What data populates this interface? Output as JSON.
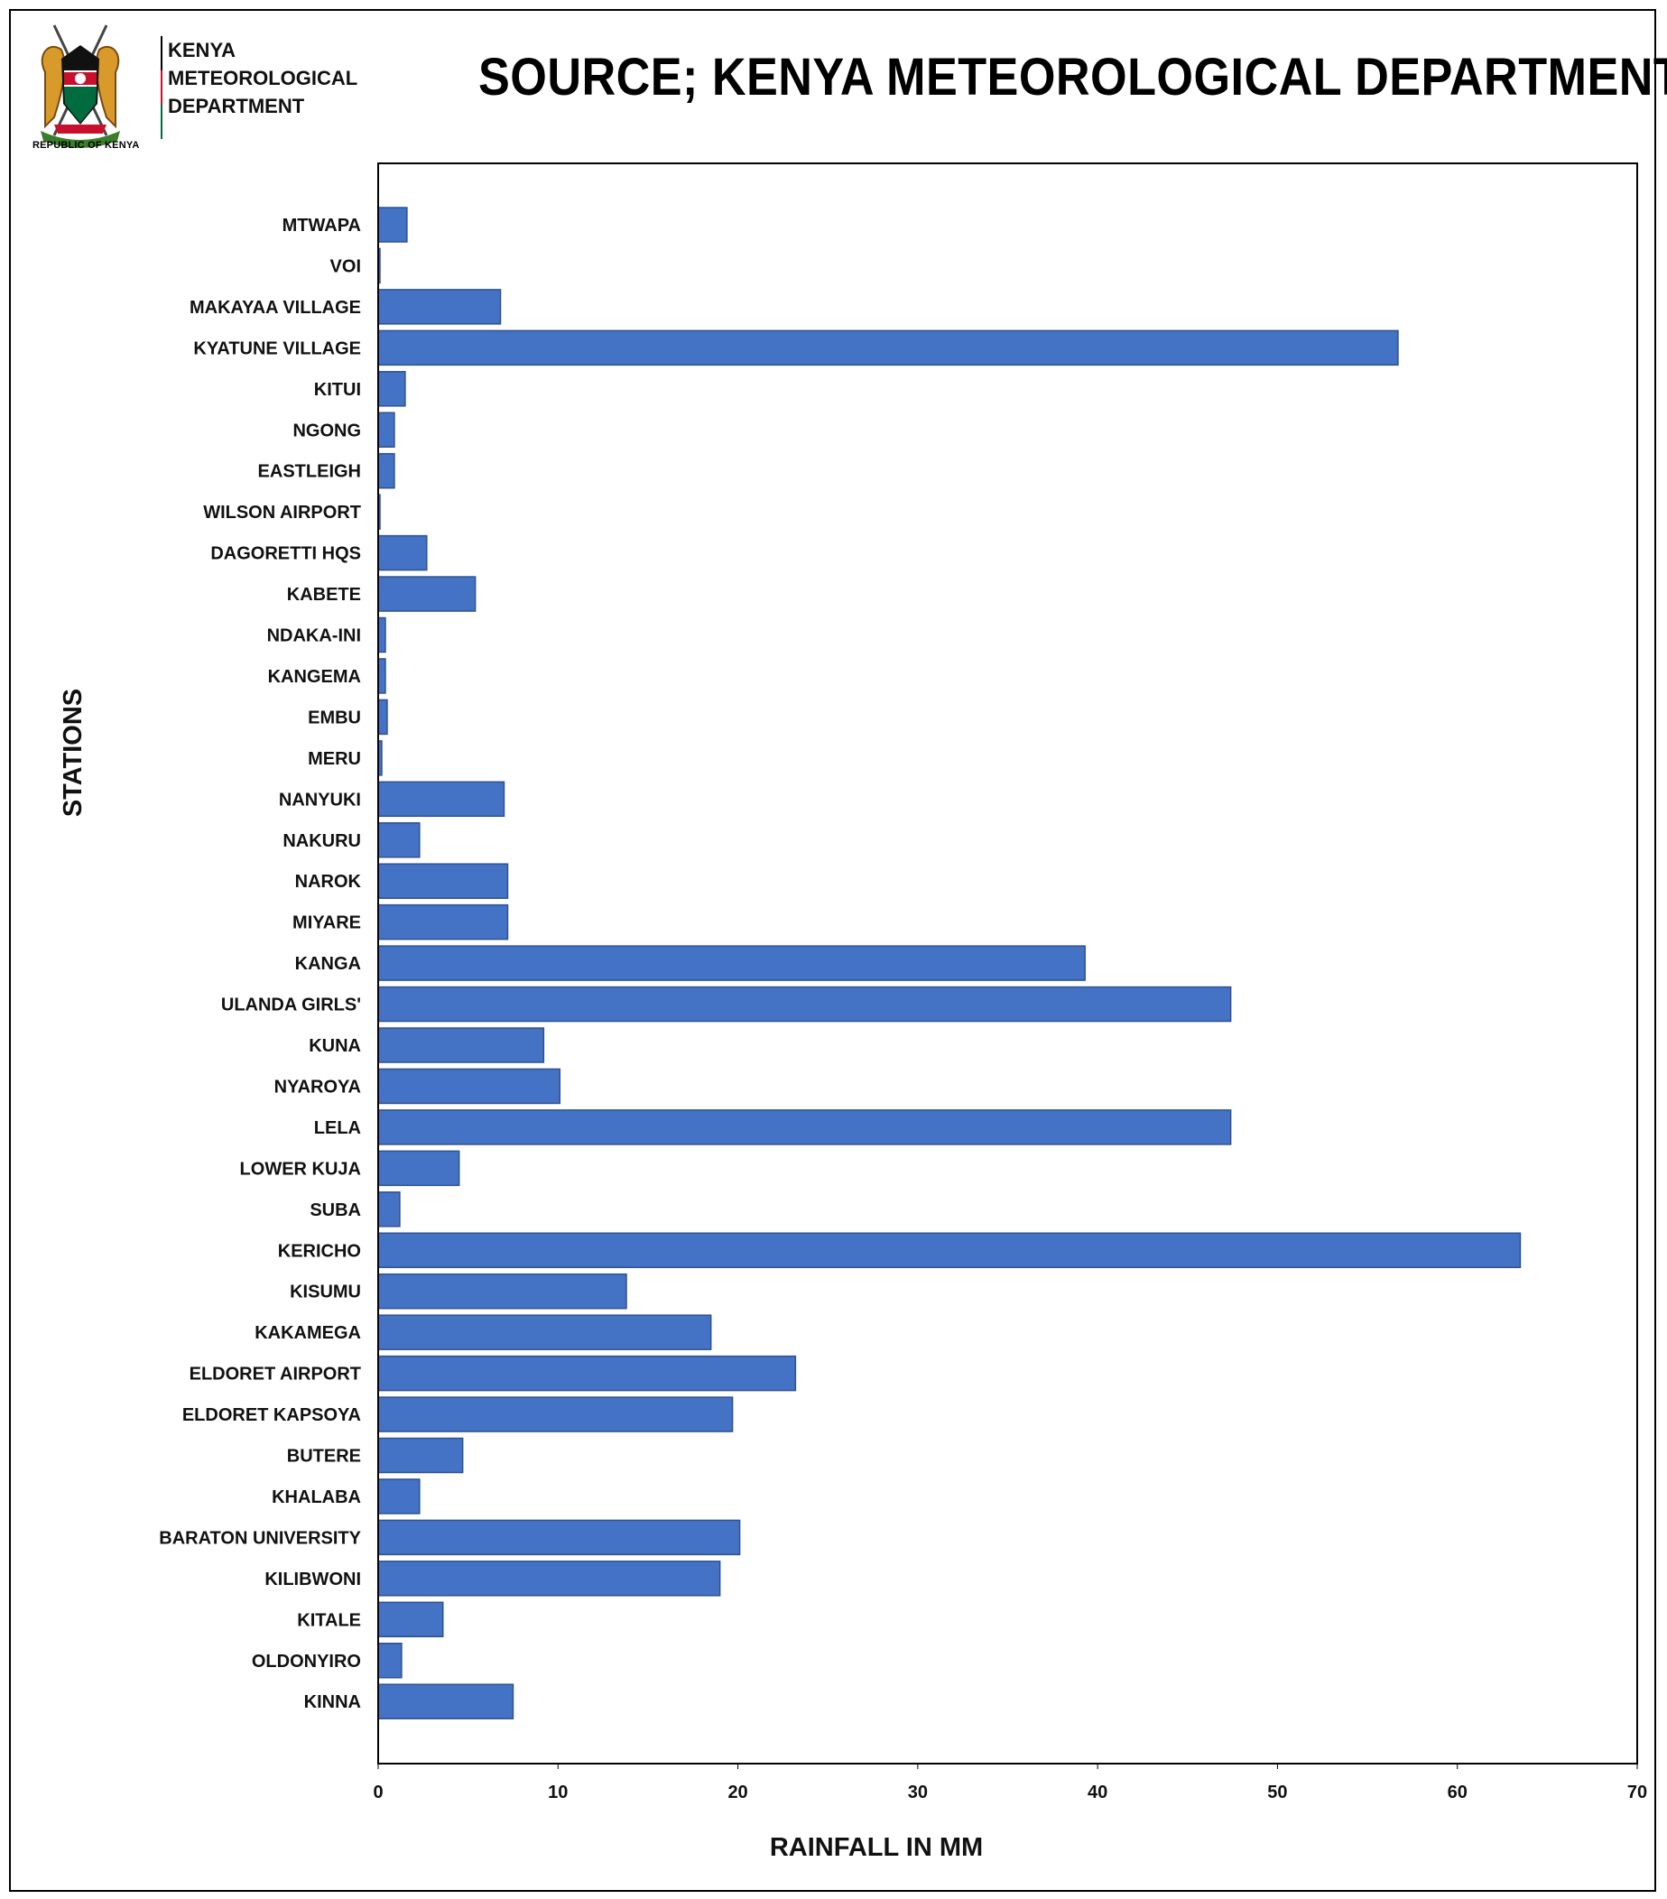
{
  "header": {
    "logo_caption": "REPUBLIC OF KENYA",
    "logo_banner": "HARAMBEE",
    "dept_lines": [
      "KENYA",
      "METEOROLOGICAL",
      "DEPARTMENT"
    ],
    "title": "SOURCE; KENYA METEOROLOGICAL DEPARTMENT"
  },
  "colors": {
    "bar": "#4472C4",
    "bar_edge": "#2F528F"
  },
  "chart_data": {
    "type": "bar",
    "orientation": "horizontal",
    "title": "",
    "xlabel": "RAINFALL IN MM",
    "ylabel": "STATIONS",
    "xlim": [
      0,
      70
    ],
    "xticks": [
      0,
      10,
      20,
      30,
      40,
      50,
      60,
      70
    ],
    "grid": false,
    "categories": [
      "MTWAPA",
      "VOI",
      "MAKAYAA VILLAGE",
      "KYATUNE  VILLAGE",
      "KITUI",
      "NGONG",
      "EASTLEIGH",
      "WILSON AIRPORT",
      "DAGORETTI HQS",
      "KABETE",
      "NDAKA-INI",
      "KANGEMA",
      "EMBU",
      "MERU",
      "NANYUKI",
      "NAKURU",
      "NAROK",
      "MIYARE",
      "KANGA",
      "ULANDA GIRLS'",
      "KUNA",
      "NYAROYA",
      "LELA",
      "LOWER KUJA",
      "SUBA",
      "KERICHO",
      "KISUMU",
      "KAKAMEGA",
      "ELDORET AIRPORT",
      "ELDORET KAPSOYA",
      "BUTERE",
      "KHALABA",
      "BARATON UNIVERSITY",
      "KILIBWONI",
      "KITALE",
      "OLDONYIRO",
      "KINNA"
    ],
    "values": [
      1.6,
      0.1,
      6.8,
      56.7,
      1.5,
      0.9,
      0.9,
      0.1,
      2.7,
      5.4,
      0.4,
      0.4,
      0.5,
      0.2,
      7.0,
      2.3,
      7.2,
      7.2,
      39.3,
      47.4,
      9.2,
      10.1,
      47.4,
      4.5,
      1.2,
      63.5,
      13.8,
      18.5,
      23.2,
      19.7,
      4.7,
      2.3,
      20.1,
      19.0,
      3.6,
      1.3,
      7.5
    ]
  }
}
